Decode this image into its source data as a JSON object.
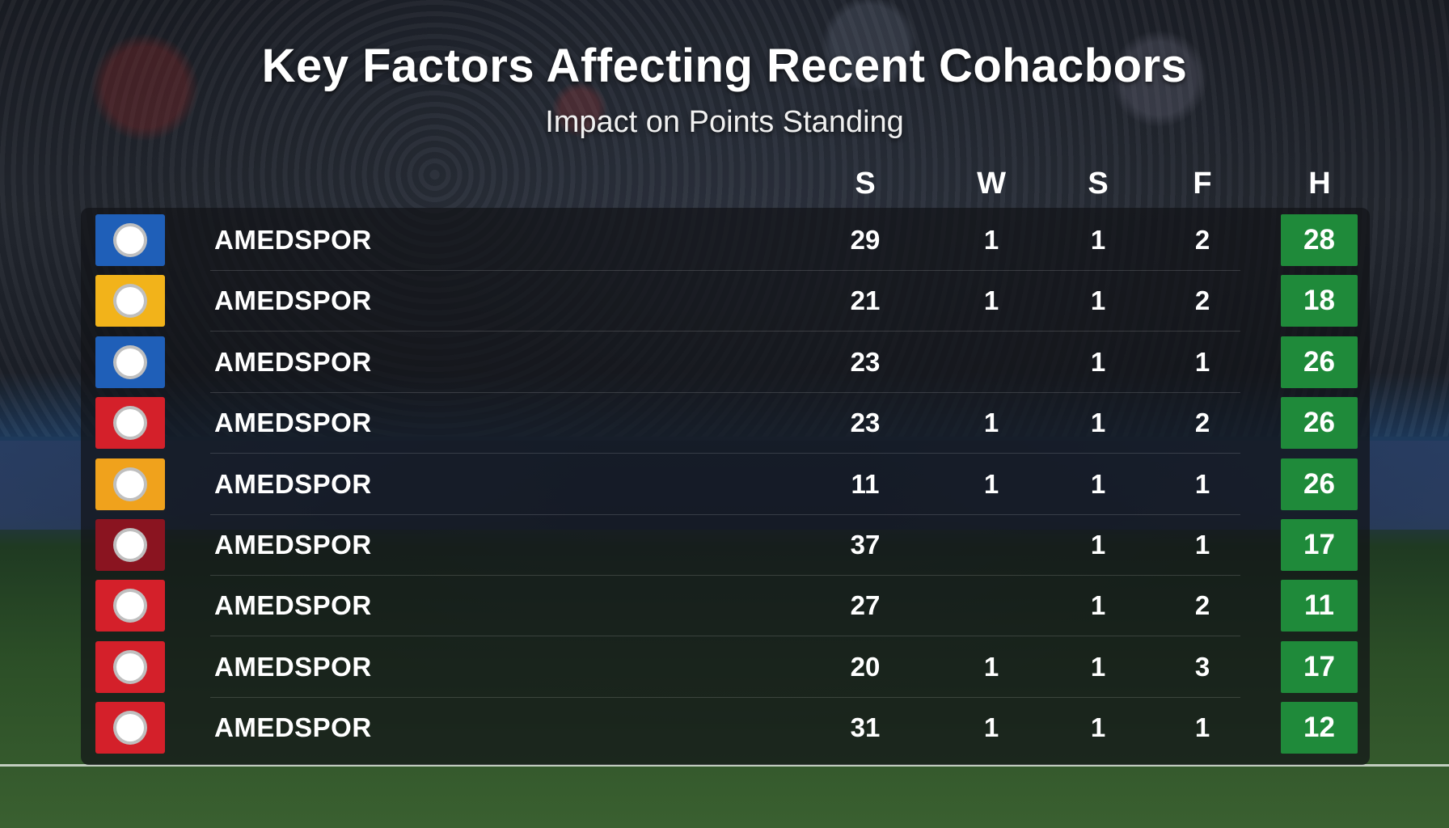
{
  "title": "Key Factors Affecting Recent Cohacbors",
  "subtitle": "Impact on Points Standing",
  "table": {
    "columns": [
      "S",
      "W",
      "S",
      "F",
      "H"
    ],
    "rows": [
      {
        "name": "AMEDSPOR",
        "cells": [
          29,
          1,
          1,
          2,
          28
        ]
      },
      {
        "name": "AMEDSPOR",
        "cells": [
          21,
          1,
          1,
          2,
          18
        ]
      },
      {
        "name": "AMEDSPOR",
        "cells": [
          23,
          null,
          1,
          1,
          26
        ]
      },
      {
        "name": "AMEDSPOR",
        "cells": [
          23,
          1,
          1,
          2,
          26
        ]
      },
      {
        "name": "AMEDSPOR",
        "cells": [
          11,
          1,
          1,
          1,
          26
        ]
      },
      {
        "name": "AMEDSPOR",
        "cells": [
          37,
          null,
          1,
          1,
          17
        ]
      },
      {
        "name": "AMEDSPOR",
        "cells": [
          27,
          null,
          1,
          2,
          11
        ]
      },
      {
        "name": "AMEDSPOR",
        "cells": [
          20,
          1,
          1,
          3,
          17
        ]
      },
      {
        "name": "AMEDSPOR",
        "cells": [
          31,
          1,
          1,
          1,
          12
        ]
      }
    ]
  }
}
